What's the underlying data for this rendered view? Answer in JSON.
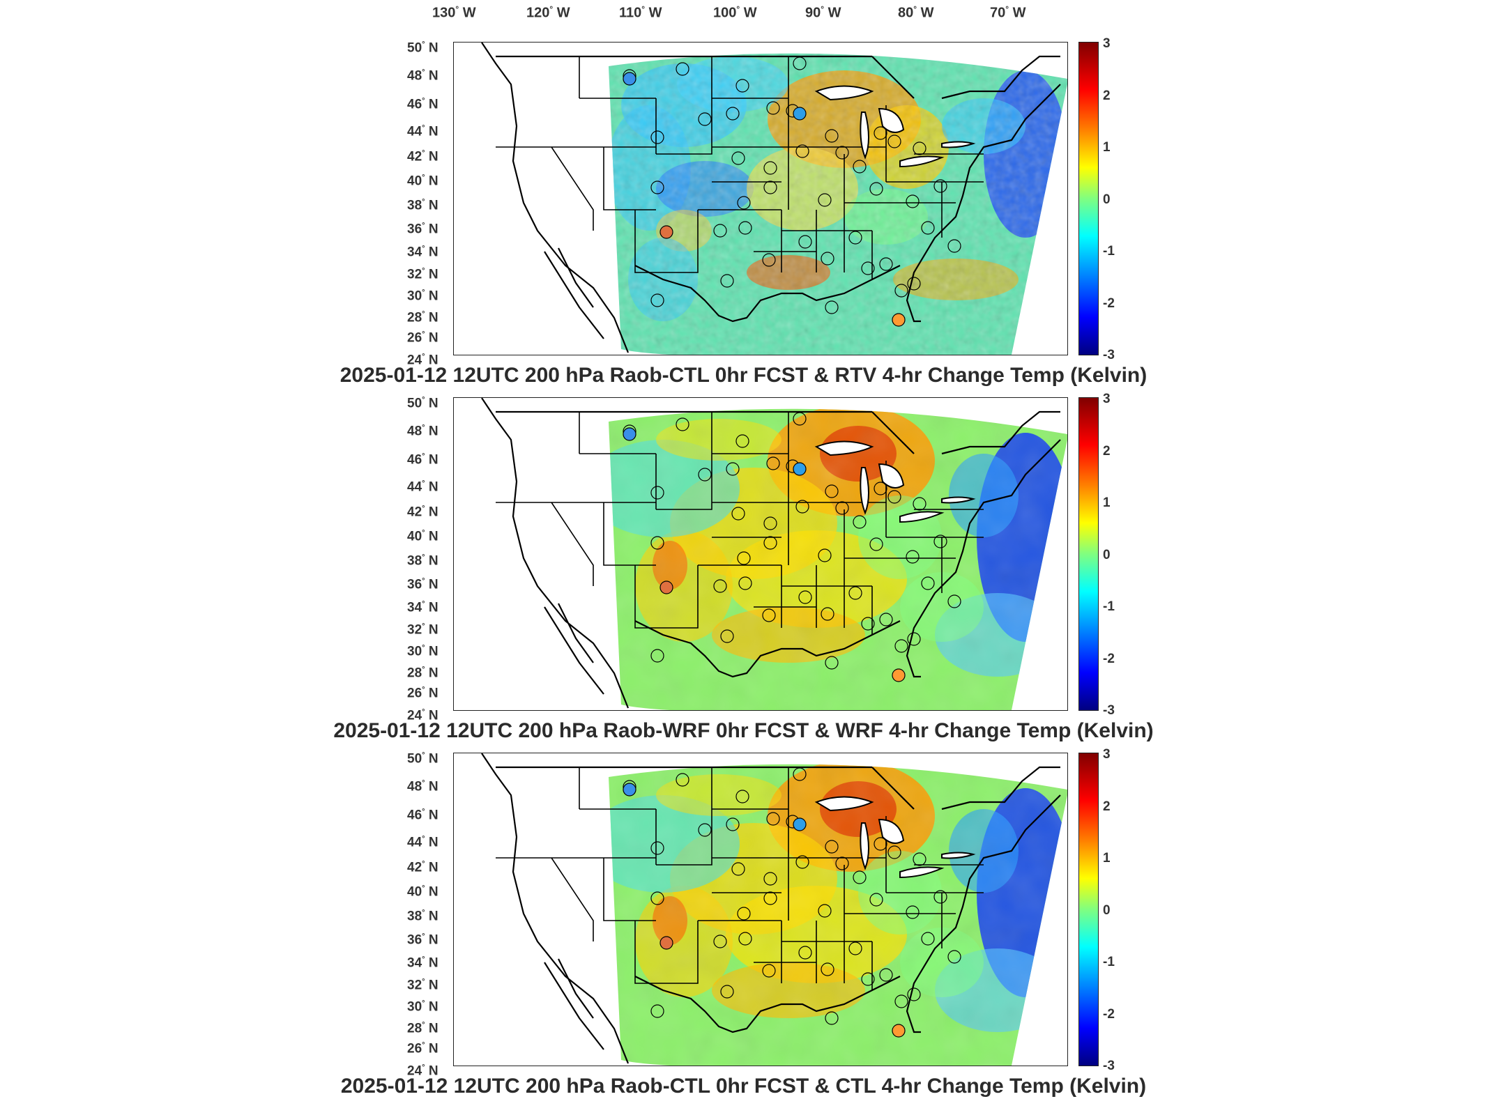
{
  "longitude_labels": [
    {
      "deg": "130",
      "dir": "W"
    },
    {
      "deg": "120",
      "dir": "W"
    },
    {
      "deg": "110",
      "dir": "W"
    },
    {
      "deg": "100",
      "dir": "W"
    },
    {
      "deg": "90",
      "dir": "W"
    },
    {
      "deg": "80",
      "dir": "W"
    },
    {
      "deg": "70",
      "dir": "W"
    }
  ],
  "latitude_labels": [
    {
      "deg": "50",
      "dir": "N"
    },
    {
      "deg": "48",
      "dir": "N"
    },
    {
      "deg": "46",
      "dir": "N"
    },
    {
      "deg": "44",
      "dir": "N"
    },
    {
      "deg": "42",
      "dir": "N"
    },
    {
      "deg": "40",
      "dir": "N"
    },
    {
      "deg": "38",
      "dir": "N"
    },
    {
      "deg": "36",
      "dir": "N"
    },
    {
      "deg": "34",
      "dir": "N"
    },
    {
      "deg": "32",
      "dir": "N"
    },
    {
      "deg": "30",
      "dir": "N"
    },
    {
      "deg": "28",
      "dir": "N"
    },
    {
      "deg": "26",
      "dir": "N"
    },
    {
      "deg": "24",
      "dir": "N"
    }
  ],
  "colorbar": {
    "ticks": [
      "3",
      "2",
      "1",
      "0",
      "-1",
      "-2",
      "-3"
    ],
    "range": [
      -3,
      3
    ]
  },
  "colors": {
    "high": "#c00000",
    "warm": "#ff9900",
    "neutral": "#7fff80",
    "cool": "#33c6ff",
    "low": "#0000b0"
  },
  "panels": [
    {
      "title": "2025-01-12 12UTC 200 hPa Raob-CTL 0hr FCST & RTV 4-hr Change Temp (Kelvin)",
      "field_style": "noisy"
    },
    {
      "title": "2025-01-12 12UTC 200 hPa Raob-WRF 0hr FCST & WRF 4-hr Change Temp (Kelvin)",
      "field_style": "smooth"
    },
    {
      "title": "2025-01-12 12UTC 200 hPa Raob-CTL 0hr FCST & CTL 4-hr Change Temp (Kelvin)",
      "field_style": "smooth"
    }
  ]
}
